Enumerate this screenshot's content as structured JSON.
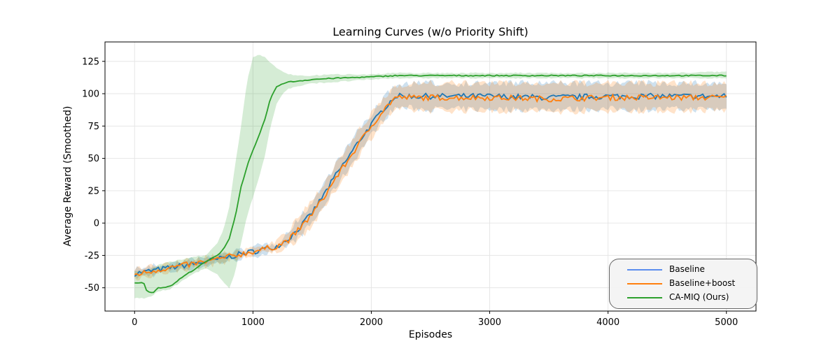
{
  "chart_data": {
    "type": "line",
    "title": "Learning Curves (w/o Priority Shift)",
    "xlabel": "Episodes",
    "ylabel": "Average Reward (Smoothed)",
    "xlim": [
      -250,
      5250
    ],
    "ylim": [
      -68,
      140
    ],
    "xticks": [
      0,
      1000,
      2000,
      3000,
      4000,
      5000
    ],
    "yticks": [
      -50,
      -25,
      0,
      25,
      50,
      75,
      100,
      125
    ],
    "grid": true,
    "legend_position": "bottom-right",
    "series": [
      {
        "name": "Baseline",
        "color": "#1f77b4",
        "legend_color": "#5b8def",
        "x": [
          0,
          200,
          400,
          600,
          800,
          1000,
          1200,
          1300,
          1400,
          1500,
          1600,
          1700,
          1800,
          1900,
          2000,
          2100,
          2200,
          2300,
          2500,
          3000,
          3500,
          4000,
          4500,
          5000
        ],
        "y": [
          -39,
          -36,
          -33,
          -30,
          -26,
          -22,
          -18,
          -12,
          -3,
          8,
          22,
          37,
          50,
          64,
          76,
          88,
          98,
          98,
          98,
          98,
          97,
          98,
          98,
          98
        ],
        "band_lower": [
          -42,
          -39,
          -36,
          -33,
          -29,
          -25,
          -22,
          -17,
          -10,
          0,
          13,
          28,
          41,
          55,
          68,
          80,
          89,
          89,
          88,
          88,
          88,
          88,
          88,
          88
        ],
        "band_upper": [
          -35,
          -33,
          -30,
          -27,
          -23,
          -19,
          -15,
          -7,
          5,
          16,
          31,
          46,
          59,
          73,
          84,
          96,
          106,
          108,
          108,
          108,
          108,
          108,
          108,
          108
        ]
      },
      {
        "name": "Baseline+boost",
        "color": "#ff7f0e",
        "legend_color": "#ff7f0e",
        "x": [
          0,
          200,
          400,
          600,
          800,
          1000,
          1200,
          1300,
          1400,
          1500,
          1600,
          1700,
          1800,
          1900,
          2000,
          2100,
          2200,
          2300,
          2500,
          3000,
          3500,
          4000,
          4500,
          5000
        ],
        "y": [
          -40,
          -36,
          -33,
          -30,
          -26,
          -22,
          -18,
          -13,
          -4,
          7,
          20,
          35,
          48,
          62,
          75,
          87,
          97,
          97,
          97,
          97,
          96,
          97,
          97,
          97
        ],
        "band_lower": [
          -43,
          -39,
          -36,
          -33,
          -29,
          -25,
          -22,
          -18,
          -11,
          -2,
          11,
          26,
          39,
          53,
          66,
          78,
          88,
          87,
          87,
          87,
          86,
          87,
          87,
          87
        ],
        "band_upper": [
          -36,
          -33,
          -30,
          -27,
          -23,
          -19,
          -14,
          -6,
          6,
          17,
          31,
          45,
          58,
          72,
          84,
          96,
          106,
          108,
          108,
          108,
          108,
          108,
          108,
          108
        ]
      },
      {
        "name": "CA-MIQ (Ours)",
        "color": "#2ca02c",
        "legend_color": "#2ca02c",
        "x": [
          0,
          50,
          80,
          100,
          150,
          200,
          300,
          400,
          500,
          600,
          700,
          750,
          800,
          850,
          900,
          950,
          1000,
          1050,
          1100,
          1150,
          1200,
          1250,
          1300,
          1400,
          1500,
          1700,
          2000,
          2200,
          2500,
          3000,
          3500,
          4000,
          4500,
          5000
        ],
        "y": [
          -46,
          -46,
          -47,
          -52,
          -54,
          -50,
          -49,
          -42,
          -36,
          -30,
          -25,
          -20,
          -12,
          5,
          28,
          44,
          56,
          67,
          80,
          97,
          105,
          108,
          109,
          110,
          111,
          112,
          113,
          114,
          114,
          114,
          114,
          114,
          114,
          114
        ],
        "band_lower": [
          -58,
          -58,
          -58,
          -58,
          -56,
          -53,
          -51,
          -45,
          -39,
          -35,
          -40,
          -46,
          -50,
          -38,
          -15,
          5,
          20,
          35,
          52,
          75,
          92,
          100,
          104,
          106,
          108,
          109,
          111,
          112,
          112,
          112,
          112,
          112,
          112,
          112
        ],
        "band_upper": [
          -37,
          -37,
          -37,
          -37,
          -35,
          -32,
          -30,
          -28,
          -26,
          -25,
          -15,
          -5,
          12,
          45,
          75,
          110,
          128,
          130,
          128,
          124,
          120,
          117,
          115,
          114,
          114,
          115,
          115,
          116,
          116,
          116,
          116,
          116,
          116,
          117
        ]
      }
    ]
  }
}
